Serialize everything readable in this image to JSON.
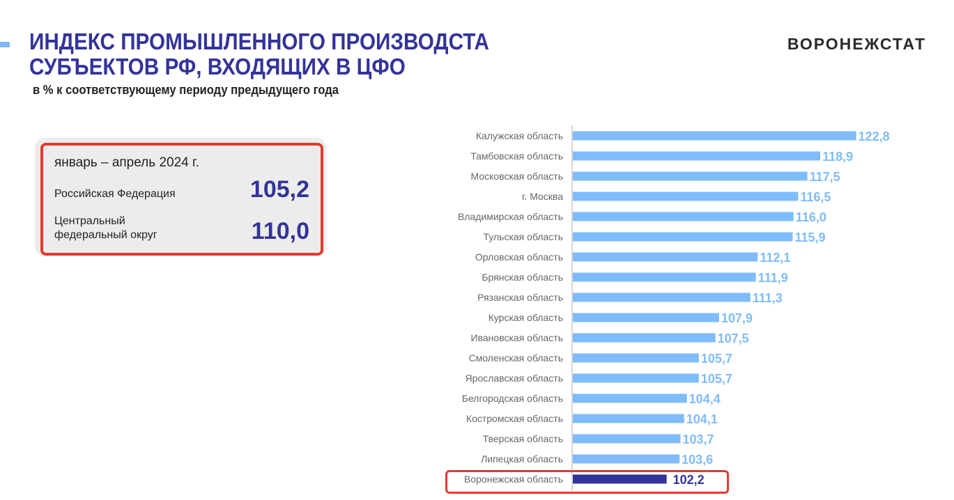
{
  "header": {
    "title_line1": "ИНДЕКС ПРОМЫШЛЕННОГО ПРОИЗВОДСТА",
    "title_line2": "СУБЪЕКТОВ РФ, ВХОДЯЩИХ В ЦФО",
    "subtitle": "в % к соответствующему периоду предыдущего  года",
    "logo": "ВОРОНЕЖСТАТ"
  },
  "summary": {
    "period": "январь – апрель 2024 г.",
    "rf_label": "Российская Федерация",
    "rf_value": "105,2",
    "cfo_label_line1": "Центральный",
    "cfo_label_line2": "федеральный округ",
    "cfo_value": "110,0"
  },
  "chart_data": {
    "type": "bar",
    "orientation": "horizontal",
    "categories": [
      "Калужская область",
      "Тамбовская область",
      "Московская область",
      "г. Москва",
      "Владимирская область",
      "Тульская область",
      "Орловская область",
      "Брянская область",
      "Рязанская область",
      "Курская область",
      "Ивановская область",
      "Смоленская область",
      "Ярославская область",
      "Белгородская область",
      "Костромская область",
      "Тверская область",
      "Липецкая  область",
      "Воронежская область"
    ],
    "values": [
      122.8,
      118.9,
      117.5,
      116.5,
      116.0,
      115.9,
      112.1,
      111.9,
      111.3,
      107.9,
      107.5,
      105.7,
      105.7,
      104.4,
      104.1,
      103.7,
      103.6,
      102.2
    ],
    "labels": [
      "122,8",
      "118,9",
      "117,5",
      "116,5",
      "116,0",
      "115,9",
      "112,1",
      "111,9",
      "111,3",
      "107,9",
      "107,5",
      "105,7",
      "105,7",
      "104,4",
      "104,1",
      "103,7",
      "103,6",
      "102,2"
    ],
    "xlim": [
      92,
      125
    ],
    "highlight": "Воронежская область",
    "colors": {
      "bar": "#7fbcfb",
      "highlight": "#33339a",
      "label": "#7fbcfb",
      "highlight_label": "#33339a",
      "highlight_box": "#e33b2e"
    },
    "grid": false
  }
}
